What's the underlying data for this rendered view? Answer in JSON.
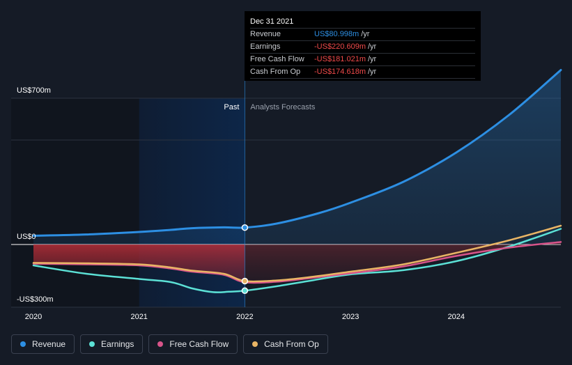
{
  "tooltip": {
    "date": "Dec 31 2021",
    "rows": [
      {
        "label": "Revenue",
        "value": "US$80.998m",
        "unit": "/yr",
        "color": "#2d8fe3"
      },
      {
        "label": "Earnings",
        "value": "-US$220.609m",
        "unit": "/yr",
        "color": "#f04a4a"
      },
      {
        "label": "Free Cash Flow",
        "value": "-US$181.021m",
        "unit": "/yr",
        "color": "#f04a4a"
      },
      {
        "label": "Cash From Op",
        "value": "-US$174.618m",
        "unit": "/yr",
        "color": "#f04a4a"
      }
    ]
  },
  "legend": [
    {
      "label": "Revenue",
      "color": "#2d8fe3"
    },
    {
      "label": "Earnings",
      "color": "#5ce1d6"
    },
    {
      "label": "Free Cash Flow",
      "color": "#d8548a"
    },
    {
      "label": "Cash From Op",
      "color": "#e9b565"
    }
  ],
  "chart_data": {
    "type": "line",
    "x_unit": "year",
    "xlim": [
      2019.9,
      2024.99
    ],
    "ylim": [
      -385,
      835
    ],
    "y_ticks": [
      {
        "label": "US$700m",
        "value": 700
      },
      {
        "label": "US$0",
        "value": 0
      },
      {
        "label": "-US$300m",
        "value": -300
      }
    ],
    "x_ticks": [
      {
        "label": "2020",
        "value": 2020
      },
      {
        "label": "2021",
        "value": 2021
      },
      {
        "label": "2022",
        "value": 2022
      },
      {
        "label": "2023",
        "value": 2023
      },
      {
        "label": "2024",
        "value": 2024
      }
    ],
    "past_label": "Past",
    "forecast_label": "Analysts Forecasts",
    "divider_x": 2022,
    "highlight_range": [
      2021,
      2022
    ],
    "series": [
      {
        "name": "Revenue",
        "color": "#2d8fe3",
        "area": true,
        "points": [
          [
            2020,
            42
          ],
          [
            2020.5,
            48
          ],
          [
            2021,
            60
          ],
          [
            2021.3,
            70
          ],
          [
            2021.5,
            78
          ],
          [
            2021.8,
            82
          ],
          [
            2022,
            81
          ],
          [
            2022.3,
            100
          ],
          [
            2022.7,
            150
          ],
          [
            2023,
            200
          ],
          [
            2023.5,
            300
          ],
          [
            2024,
            440
          ],
          [
            2024.5,
            620
          ],
          [
            2024.99,
            835
          ]
        ]
      },
      {
        "name": "Earnings",
        "color": "#5ce1d6",
        "area": false,
        "points": [
          [
            2020,
            -100
          ],
          [
            2020.5,
            -140
          ],
          [
            2021,
            -165
          ],
          [
            2021.3,
            -180
          ],
          [
            2021.5,
            -210
          ],
          [
            2021.7,
            -228
          ],
          [
            2021.85,
            -226
          ],
          [
            2022,
            -221
          ],
          [
            2022.3,
            -200
          ],
          [
            2022.6,
            -175
          ],
          [
            2023,
            -143
          ],
          [
            2023.5,
            -123
          ],
          [
            2024,
            -80
          ],
          [
            2024.5,
            -10
          ],
          [
            2024.99,
            75
          ]
        ]
      },
      {
        "name": "Free Cash Flow",
        "color": "#d8548a",
        "area": true,
        "points": [
          [
            2020,
            -92
          ],
          [
            2020.5,
            -95
          ],
          [
            2021,
            -100
          ],
          [
            2021.3,
            -115
          ],
          [
            2021.5,
            -130
          ],
          [
            2021.8,
            -145
          ],
          [
            2022,
            -181
          ],
          [
            2022.3,
            -178
          ],
          [
            2022.6,
            -162
          ],
          [
            2023,
            -138
          ],
          [
            2023.5,
            -105
          ],
          [
            2024,
            -55
          ],
          [
            2024.5,
            -15
          ],
          [
            2024.99,
            12
          ]
        ]
      },
      {
        "name": "Cash From Op",
        "color": "#e9b565",
        "area": false,
        "points": [
          [
            2020,
            -88
          ],
          [
            2020.5,
            -90
          ],
          [
            2021,
            -95
          ],
          [
            2021.3,
            -110
          ],
          [
            2021.5,
            -125
          ],
          [
            2021.8,
            -140
          ],
          [
            2022,
            -175
          ],
          [
            2022.3,
            -172
          ],
          [
            2022.6,
            -157
          ],
          [
            2023,
            -130
          ],
          [
            2023.5,
            -95
          ],
          [
            2024,
            -40
          ],
          [
            2024.5,
            20
          ],
          [
            2024.99,
            90
          ]
        ]
      }
    ],
    "markers": [
      {
        "series": "Revenue",
        "x": 2022,
        "y": 81
      },
      {
        "series": "Cash From Op",
        "x": 2022,
        "y": -175
      },
      {
        "series": "Earnings",
        "x": 2022,
        "y": -221
      }
    ]
  }
}
